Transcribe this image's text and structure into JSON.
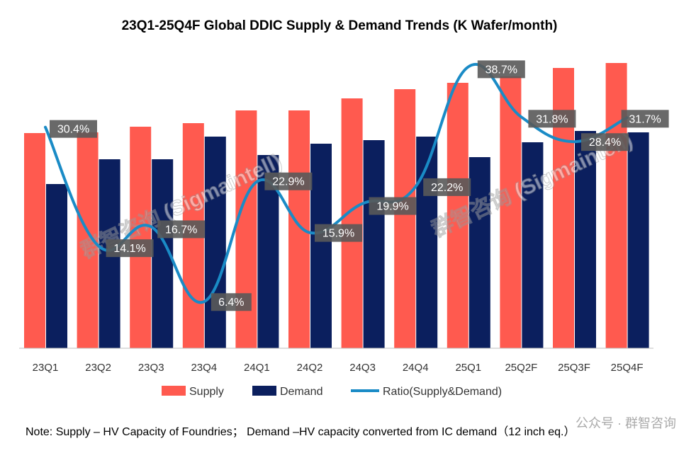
{
  "chart_data": {
    "type": "bar+line",
    "title": "23Q1-25Q4F Global DDIC Supply & Demand Trends (K Wafer/month)",
    "categories": [
      "23Q1",
      "23Q2",
      "23Q3",
      "23Q4",
      "24Q1",
      "24Q2",
      "24Q3",
      "24Q4",
      "25Q1",
      "25Q2F",
      "25Q3F",
      "25Q4F"
    ],
    "series": [
      {
        "name": "Supply",
        "type": "bar",
        "color": "#FF5A4F",
        "values": [
          304,
          305,
          313,
          318,
          336,
          336,
          353,
          366,
          375,
          384,
          396,
          403
        ]
      },
      {
        "name": "Demand",
        "type": "bar",
        "color": "#0B1F5E",
        "values": [
          232,
          267,
          267,
          299,
          273,
          289,
          294,
          299,
          270,
          291,
          307,
          305
        ]
      },
      {
        "name": "Ratio(Supply&Demand)",
        "type": "line",
        "axis": "secondary",
        "color": "#1A8BC6",
        "values": [
          30.4,
          14.1,
          16.7,
          6.4,
          22.9,
          15.9,
          19.9,
          22.2,
          38.7,
          31.8,
          28.4,
          31.7
        ]
      }
    ],
    "data_labels": [
      "30.4%",
      "14.1%",
      "16.7%",
      "6.4%",
      "22.9%",
      "15.9%",
      "19.9%",
      "22.2%",
      "38.7%",
      "31.8%",
      "28.4%",
      "31.7%"
    ],
    "ylim": [
      0,
      412
    ],
    "y2lim": [
      0,
      40.1
    ],
    "grid": false,
    "legend": "bottom",
    "xlabel": "",
    "ylabel": ""
  },
  "note": "Note: Supply – HV Capacity of Foundries；  Demand –HV capacity converted from IC demand（12 inch eq.）",
  "watermark": {
    "center": "群智咨询 (Sigmaintell)",
    "footer": "公众号 · 群智咨询"
  }
}
